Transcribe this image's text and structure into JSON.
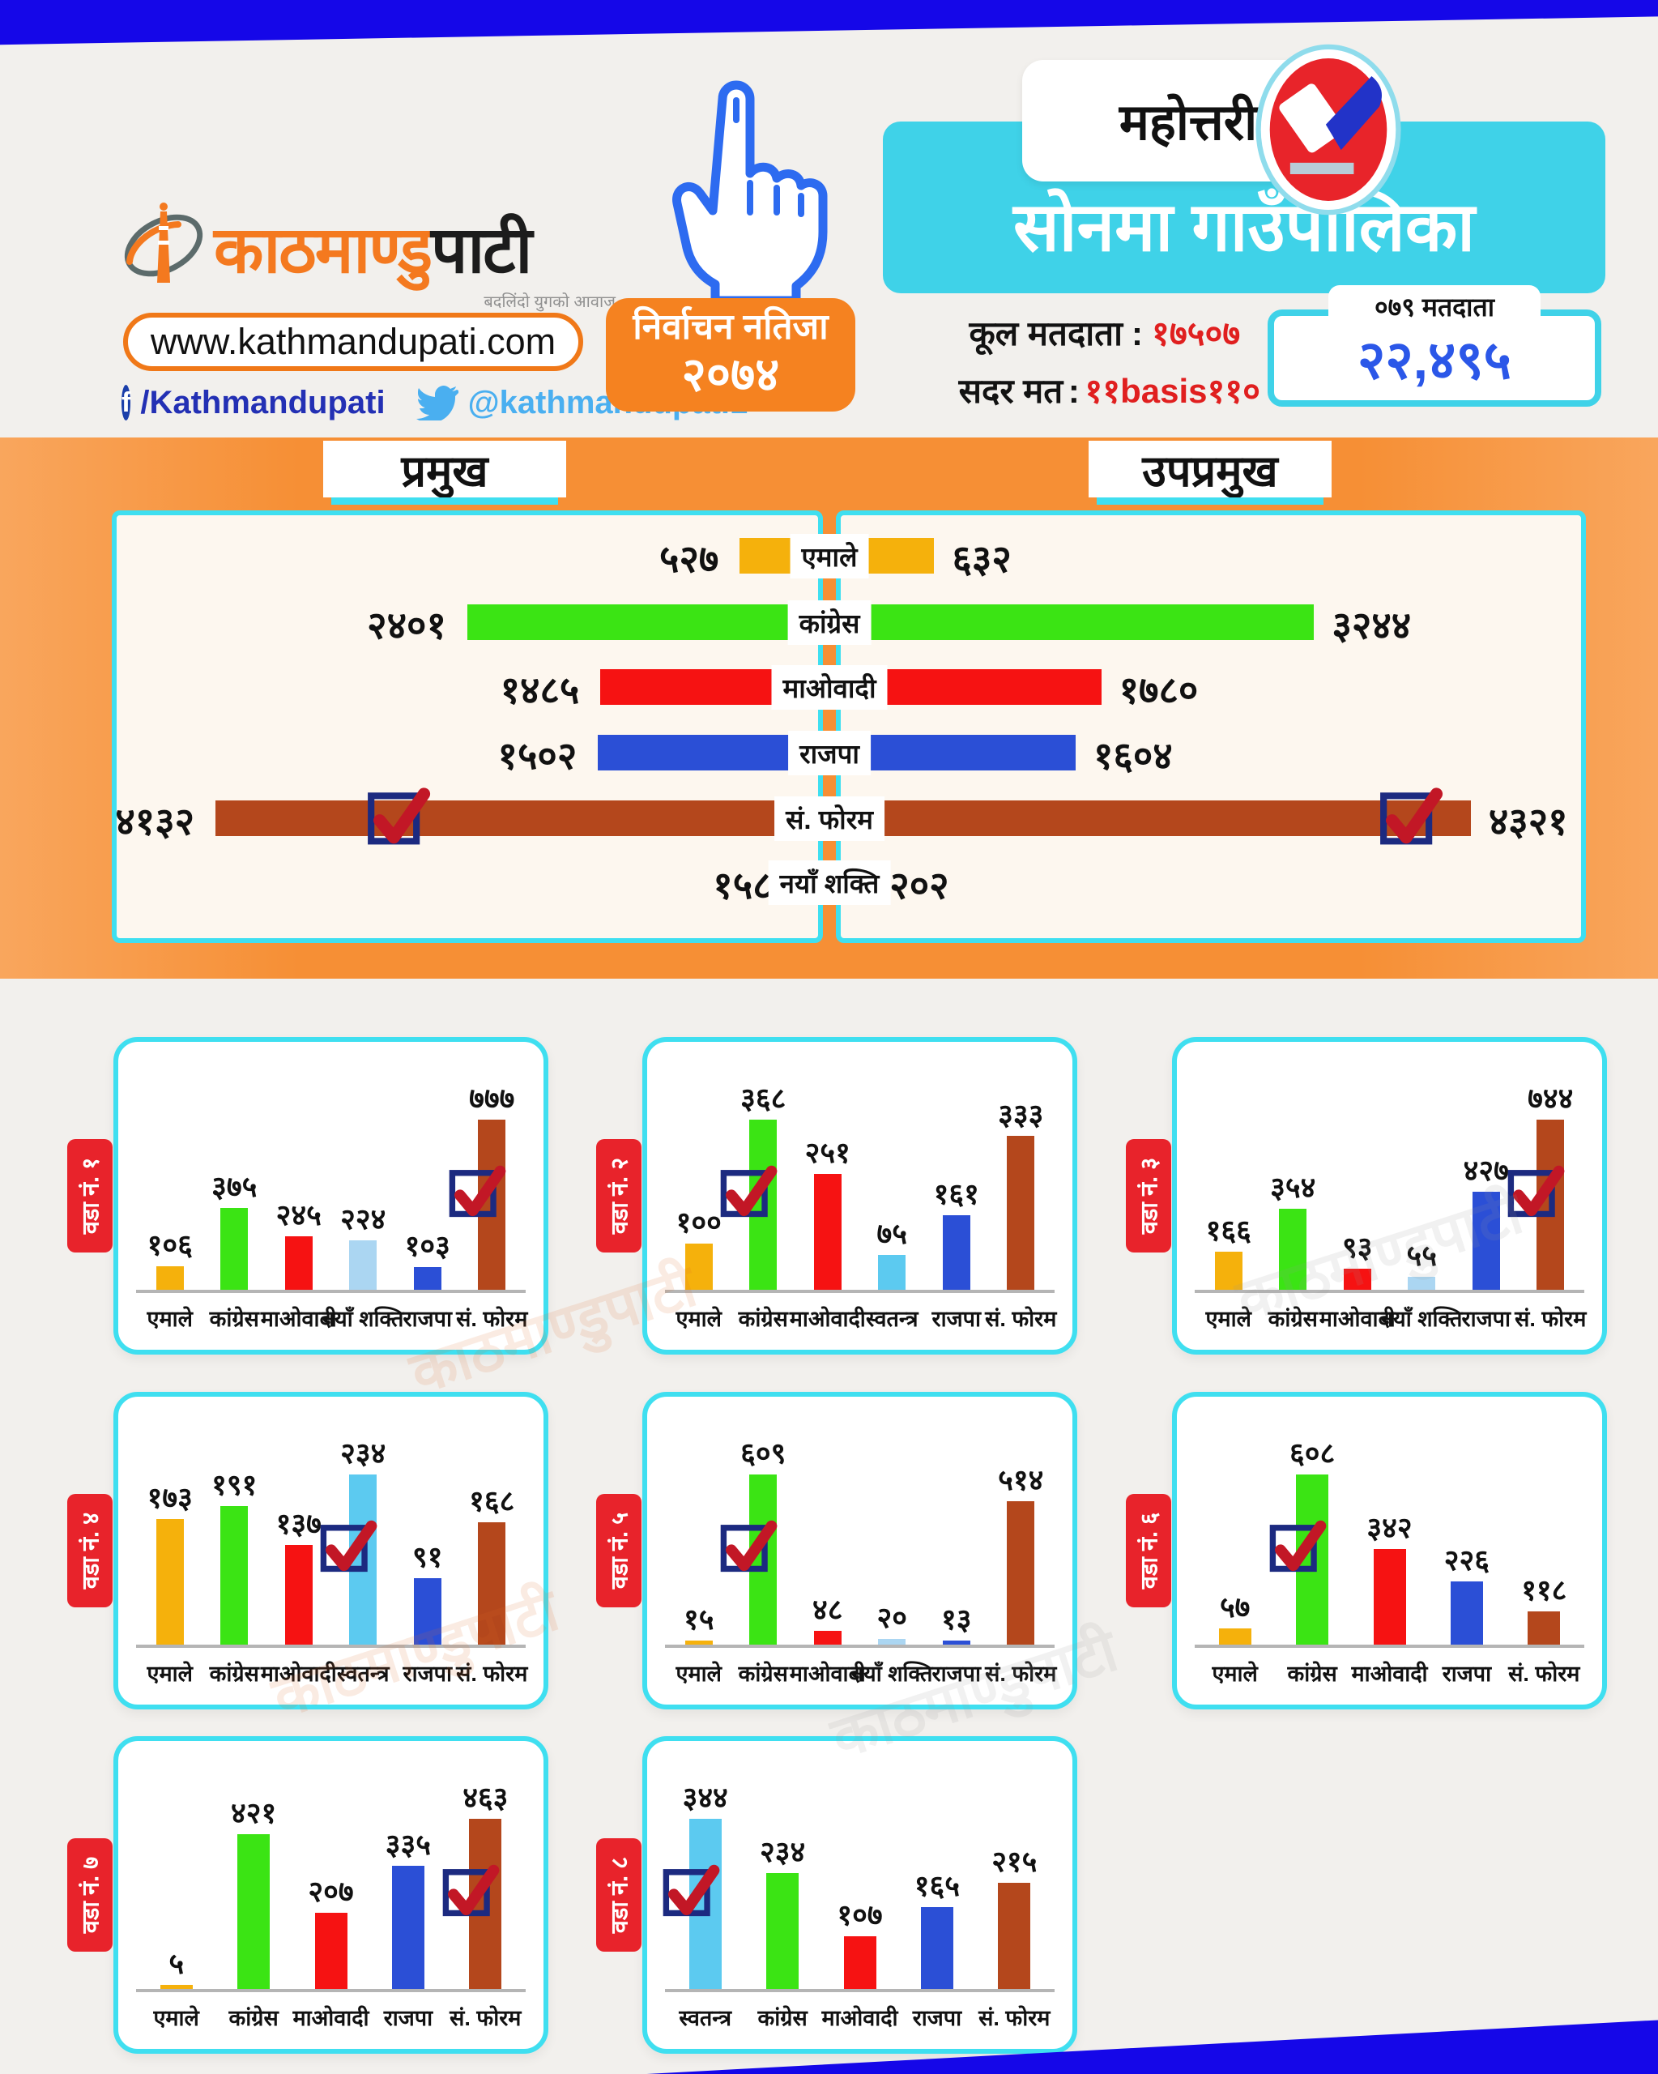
{
  "brand": {
    "logo_main": "काठमाण्डु",
    "logo_suffix": "पाटी",
    "tagline": "बदलिंदो युगको आवाज",
    "website": "www.kathmandupati.com",
    "facebook_icon": "f",
    "facebook_handle": "/Kathmandupati",
    "twitter_handle": "@kathmandupati1"
  },
  "header": {
    "district": "महोत्तरी",
    "municipality": "सोनमा गाउँपालिका",
    "election_label": "निर्वाचन नतिजा",
    "election_year": "२०७४",
    "separator": ":",
    "total_voters_label": "कूल मतदाता",
    "total_voters_value": "१७५०७",
    "valid_votes_label": "सदर मत",
    "valid_votes_value": "११basis११०",
    "badge_label": "०७९ मतदाता",
    "badge_value": "२२,४९५"
  },
  "summary": {
    "left_title": "प्रमुख",
    "right_title": "उपप्रमुख"
  },
  "watermark": "काठमाण्डुपाटी",
  "party_colors": {
    "एमाले": "#f5b10c",
    "कांग्रेस": "#3be414",
    "माओवादी": "#f61212",
    "राजपा": "#2b4fd6",
    "सं. फोरम": "#b4471c",
    "नयाँ शक्ति": "#abd6f2",
    "स्वतन्त्र": "#5ccaf0"
  },
  "chart_data": [
    {
      "type": "bar",
      "orientation": "mirrored-horizontal",
      "title": "प्रमुख / उपप्रमुख",
      "categories": [
        "एमाले",
        "कांग्रेस",
        "माओवादी",
        "राजपा",
        "सं. फोरम",
        "नयाँ शक्ति"
      ],
      "series": [
        {
          "name": "प्रमुख",
          "values": [
            527,
            2401,
            1485,
            1502,
            4132,
            158
          ],
          "labels": [
            "५२७",
            "२४०१",
            "१४८५",
            "१५०२",
            "४१३२",
            "१५८"
          ]
        },
        {
          "name": "उपप्रमुख",
          "values": [
            632,
            3244,
            1780,
            1604,
            4321,
            202
          ],
          "labels": [
            "६३२",
            "३२४४",
            "१७८०",
            "१६०४",
            "४३२१",
            "२०२"
          ]
        }
      ],
      "winner_category": "सं. फोरम",
      "xlim": [
        0,
        4400
      ]
    },
    {
      "type": "bar",
      "title": "वडा नं. १",
      "categories": [
        "एमाले",
        "कांग्रेस",
        "माओवादी",
        "नयाँ शक्ति",
        "राजपा",
        "सं. फोरम"
      ],
      "values": [
        106,
        375,
        245,
        224,
        103,
        777
      ],
      "labels": [
        "१०६",
        "३७५",
        "२४५",
        "२२४",
        "१०३",
        "७७७"
      ],
      "winner": "सं. फोरम"
    },
    {
      "type": "bar",
      "title": "वडा नं. २",
      "categories": [
        "एमाले",
        "कांग्रेस",
        "माओवादी",
        "स्वतन्त्र",
        "राजपा",
        "सं. फोरम"
      ],
      "values": [
        100,
        368,
        251,
        75,
        161,
        333
      ],
      "labels": [
        "१००",
        "३६८",
        "२५१",
        "७५",
        "१६१",
        "३३३"
      ],
      "winner": "कांग्रेस"
    },
    {
      "type": "bar",
      "title": "वडा नं. ३",
      "categories": [
        "एमाले",
        "कांग्रेस",
        "माओवादी",
        "नयाँ शक्ति",
        "राजपा",
        "सं. फोरम"
      ],
      "values": [
        166,
        354,
        93,
        55,
        427,
        744
      ],
      "labels": [
        "१६६",
        "३५४",
        "९३",
        "५५",
        "४२७",
        "७४४"
      ],
      "winner": "सं. फोरम"
    },
    {
      "type": "bar",
      "title": "वडा नं. ४",
      "categories": [
        "एमाले",
        "कांग्रेस",
        "माओवादी",
        "स्वतन्त्र",
        "राजपा",
        "सं. फोरम"
      ],
      "values": [
        173,
        191,
        137,
        234,
        91,
        168
      ],
      "labels": [
        "१७३",
        "१९१",
        "१३७",
        "२३४",
        "९१",
        "१६८"
      ],
      "winner": "स्वतन्त्र"
    },
    {
      "type": "bar",
      "title": "वडा नं. ५",
      "categories": [
        "एमाले",
        "कांग्रेस",
        "माओवादी",
        "नयाँ शक्ति",
        "राजपा",
        "सं. फोरम"
      ],
      "values": [
        15,
        609,
        48,
        20,
        13,
        514
      ],
      "labels": [
        "१५",
        "६०९",
        "४८",
        "२०",
        "१३",
        "५१४"
      ],
      "winner": "कांग्रेस"
    },
    {
      "type": "bar",
      "title": "वडा नं. ६",
      "categories": [
        "एमाले",
        "कांग्रेस",
        "माओवादी",
        "राजपा",
        "सं. फोरम"
      ],
      "values": [
        57,
        608,
        342,
        226,
        118
      ],
      "labels": [
        "५७",
        "६०८",
        "३४२",
        "२२६",
        "११८"
      ],
      "winner": "कांग्रेस"
    },
    {
      "type": "bar",
      "title": "वडा नं. ७",
      "categories": [
        "एमाले",
        "कांग्रेस",
        "माओवादी",
        "राजपा",
        "सं. फोरम"
      ],
      "values": [
        5,
        421,
        207,
        335,
        463
      ],
      "labels": [
        "५",
        "४२१",
        "२०७",
        "३३५",
        "४६३"
      ],
      "winner": "सं. फोरम"
    },
    {
      "type": "bar",
      "title": "वडा नं. ८",
      "categories": [
        "स्वतन्त्र",
        "कांग्रेस",
        "माओवादी",
        "राजपा",
        "सं. फोरम"
      ],
      "values": [
        344,
        234,
        107,
        165,
        215
      ],
      "labels": [
        "३४४",
        "२३४",
        "१०७",
        "१६५",
        "२१५"
      ],
      "winner": "स्वतन्त्र"
    }
  ]
}
